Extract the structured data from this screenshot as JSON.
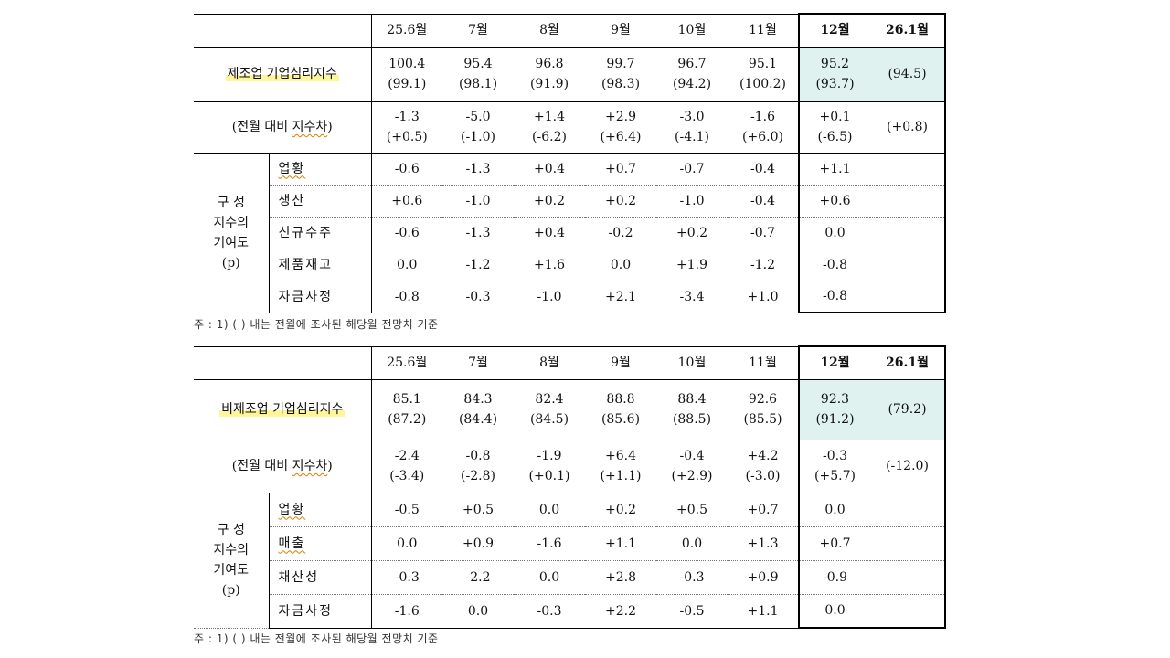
{
  "table1": {
    "months": [
      "25.6월",
      "7월",
      "8월",
      "9월",
      "10월",
      "11월",
      "12월",
      "26.1월"
    ],
    "bsi_label": "제조업 기업심리지수",
    "bsi_values": [
      "100.4",
      "95.4",
      "96.8",
      "99.7",
      "96.7",
      "95.1",
      "95.2",
      ""
    ],
    "bsi_expected": [
      "(99.1)",
      "(98.1)",
      "(91.9)",
      "(98.3)",
      "(94.2)",
      "(100.2)",
      "(93.7)",
      "(94.5)"
    ],
    "diff_label_pre": "(전월 대비 ",
    "diff_label_mark": "지수차",
    "diff_label_post": ")",
    "diff_values": [
      "-1.3",
      "-5.0",
      "+1.4",
      "+2.9",
      "-3.0",
      "-1.6",
      "+0.1",
      ""
    ],
    "diff_expected": [
      "(+0.5)",
      "(-1.0)",
      "(-6.2)",
      "(+6.4)",
      "(-4.1)",
      "(+6.0)",
      "(-6.5)",
      "(+0.8)"
    ],
    "group_label": [
      "구 성",
      "지수의",
      "기여도",
      "(p)"
    ],
    "components": [
      {
        "label": "업황",
        "values": [
          "-0.6",
          "-1.3",
          "+0.4",
          "+0.7",
          "-0.7",
          "-0.4",
          "+1.1",
          ""
        ]
      },
      {
        "label": "생산",
        "values": [
          "+0.6",
          "-1.0",
          "+0.2",
          "+0.2",
          "-1.0",
          "-0.4",
          "+0.6",
          ""
        ]
      },
      {
        "label": "신규수주",
        "values": [
          "-0.6",
          "-1.3",
          "+0.4",
          "-0.2",
          "+0.2",
          "-0.7",
          "0.0",
          ""
        ]
      },
      {
        "label": "제품재고",
        "values": [
          "0.0",
          "-1.2",
          "+1.6",
          "0.0",
          "+1.9",
          "-1.2",
          "-0.8",
          ""
        ]
      },
      {
        "label": "자금사정",
        "values": [
          "-0.8",
          "-0.3",
          "-1.0",
          "+2.1",
          "-3.4",
          "+1.0",
          "-0.8",
          ""
        ]
      }
    ],
    "note": "주 : 1) (    ) 내는 전월에 조사된 해당월 전망치 기준"
  },
  "table2": {
    "months": [
      "25.6월",
      "7월",
      "8월",
      "9월",
      "10월",
      "11월",
      "12월",
      "26.1월"
    ],
    "bsi_label": "비제조업 기업심리지수",
    "bsi_values": [
      "85.1",
      "84.3",
      "82.4",
      "88.8",
      "88.4",
      "92.6",
      "92.3",
      ""
    ],
    "bsi_expected": [
      "(87.2)",
      "(84.4)",
      "(84.5)",
      "(85.6)",
      "(88.5)",
      "(85.5)",
      "(91.2)",
      "(79.2)"
    ],
    "diff_label_pre": "(전월 대비 ",
    "diff_label_mark": "지수차",
    "diff_label_post": ")",
    "diff_values": [
      "-2.4",
      "-0.8",
      "-1.9",
      "+6.4",
      "-0.4",
      "+4.2",
      "-0.3",
      ""
    ],
    "diff_expected": [
      "(-3.4)",
      "(-2.8)",
      "(+0.1)",
      "(+1.1)",
      "(+2.9)",
      "(-3.0)",
      "(+5.7)",
      "(-12.0)"
    ],
    "group_label": [
      "구 성",
      "지수의",
      "기여도",
      "(p)"
    ],
    "components": [
      {
        "label": "업황",
        "values": [
          "-0.5",
          "+0.5",
          "0.0",
          "+0.2",
          "+0.5",
          "+0.7",
          "0.0",
          ""
        ]
      },
      {
        "label": "매출",
        "values": [
          "0.0",
          "+0.9",
          "-1.6",
          "+1.1",
          "0.0",
          "+1.3",
          "+0.7",
          ""
        ]
      },
      {
        "label": "채산성",
        "values": [
          "-0.3",
          "-2.2",
          "0.0",
          "+2.8",
          "-0.3",
          "+0.9",
          "-0.9",
          ""
        ]
      },
      {
        "label": "자금사정",
        "values": [
          "-1.6",
          "0.0",
          "-0.3",
          "+2.2",
          "-0.5",
          "+1.1",
          "0.0",
          ""
        ]
      }
    ],
    "note": "주 : 1) (    ) 내는 전월에 조사된 해당월 전망치 기준"
  }
}
